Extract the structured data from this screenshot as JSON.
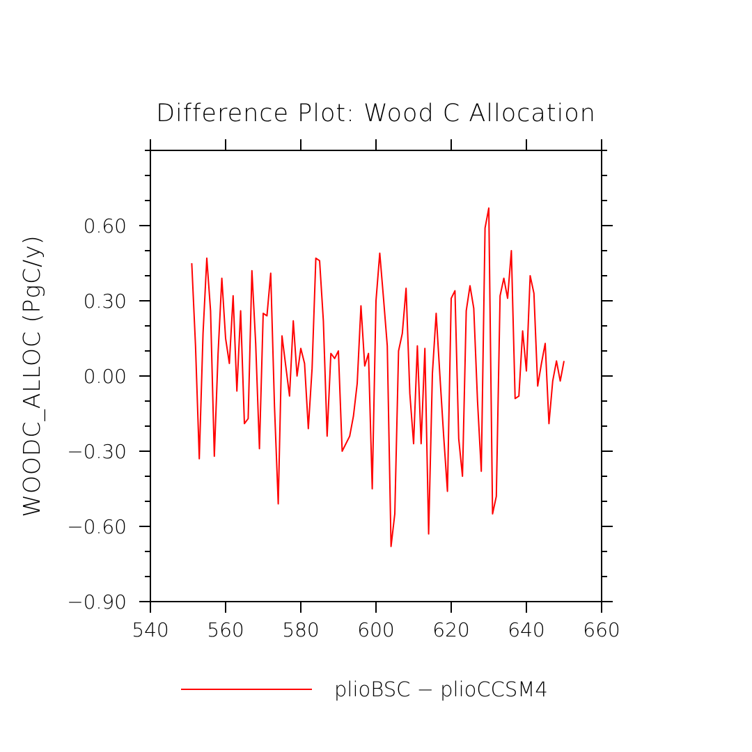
{
  "chart_data": {
    "type": "line",
    "title": "Difference Plot: Wood C Allocation",
    "xlabel": "",
    "ylabel": "WOODC_ALLOC  (PgC/y)",
    "xlim": [
      540,
      660
    ],
    "ylim": [
      -0.9,
      0.9
    ],
    "xticks": [
      {
        "value": 540,
        "label": "540"
      },
      {
        "value": 560,
        "label": "560"
      },
      {
        "value": 580,
        "label": "580"
      },
      {
        "value": 600,
        "label": "600"
      },
      {
        "value": 620,
        "label": "620"
      },
      {
        "value": 640,
        "label": "640"
      },
      {
        "value": 660,
        "label": "660"
      }
    ],
    "yticks": [
      {
        "value": -0.9,
        "label": "−0.90"
      },
      {
        "value": -0.6,
        "label": "−0.60"
      },
      {
        "value": -0.3,
        "label": "−0.30"
      },
      {
        "value": 0.0,
        "label": "0.00"
      },
      {
        "value": 0.3,
        "label": "0.30"
      },
      {
        "value": 0.6,
        "label": "0.60"
      }
    ],
    "grid": false,
    "legend_position": "bottom",
    "series": [
      {
        "name": "plioBSC − plioCCSM4",
        "color": "#ff0000",
        "x": [
          551,
          552,
          553,
          554,
          555,
          556,
          557,
          558,
          559,
          560,
          561,
          562,
          563,
          564,
          565,
          566,
          567,
          568,
          569,
          570,
          571,
          572,
          573,
          574,
          575,
          576,
          577,
          578,
          579,
          580,
          581,
          582,
          583,
          584,
          585,
          586,
          587,
          588,
          589,
          590,
          591,
          592,
          593,
          594,
          595,
          596,
          597,
          598,
          599,
          600,
          601,
          602,
          603,
          604,
          605,
          606,
          607,
          608,
          609,
          610,
          611,
          612,
          613,
          614,
          615,
          616,
          617,
          618,
          619,
          620,
          621,
          622,
          623,
          624,
          625,
          626,
          627,
          628,
          629,
          630,
          631,
          632,
          633,
          634,
          635,
          636,
          637,
          638,
          639,
          640,
          641,
          642,
          643,
          644,
          645,
          646,
          647,
          648,
          649,
          650
        ],
        "values": [
          0.45,
          0.12,
          -0.33,
          0.17,
          0.47,
          0.26,
          -0.32,
          0.09,
          0.39,
          0.15,
          0.05,
          0.32,
          -0.06,
          0.26,
          -0.19,
          -0.17,
          0.42,
          0.13,
          -0.29,
          0.25,
          0.24,
          0.41,
          -0.12,
          -0.51,
          0.16,
          0.04,
          -0.08,
          0.22,
          0.0,
          0.11,
          0.05,
          -0.21,
          0.03,
          0.47,
          0.46,
          0.22,
          -0.24,
          0.09,
          0.07,
          0.1,
          -0.3,
          -0.27,
          -0.24,
          -0.16,
          -0.03,
          0.28,
          0.04,
          0.09,
          -0.45,
          0.3,
          0.49,
          0.31,
          0.12,
          -0.68,
          -0.55,
          0.1,
          0.17,
          0.35,
          -0.07,
          -0.27,
          0.12,
          -0.27,
          0.11,
          -0.63,
          0.01,
          0.25,
          0.0,
          -0.24,
          -0.46,
          0.31,
          0.34,
          -0.25,
          -0.4,
          0.26,
          0.36,
          0.27,
          -0.1,
          -0.38,
          0.59,
          0.67,
          -0.55,
          -0.48,
          0.32,
          0.39,
          0.31,
          0.5,
          -0.09,
          -0.08,
          0.18,
          0.02,
          0.4,
          0.33,
          -0.04,
          0.05,
          0.13,
          -0.19,
          -0.02,
          0.06,
          -0.02,
          0.06
        ]
      }
    ]
  }
}
